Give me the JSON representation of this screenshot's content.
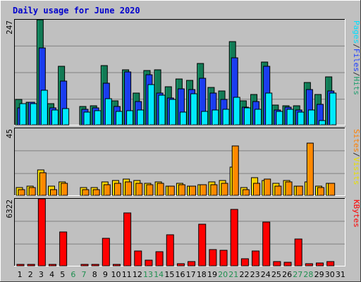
{
  "chart_data": {
    "type": "bar",
    "title": "Daily usage for June 2020",
    "x": [
      "1",
      "2",
      "3",
      "4",
      "5",
      "6",
      "7",
      "8",
      "9",
      "10",
      "11",
      "12",
      "13",
      "14",
      "15",
      "16",
      "17",
      "18",
      "19",
      "20",
      "21",
      "22",
      "23",
      "24",
      "25",
      "26",
      "27",
      "28",
      "29",
      "30",
      "31"
    ],
    "weekend_days": [
      "6",
      "7",
      "13",
      "14",
      "20",
      "21",
      "27",
      "28"
    ],
    "panels": [
      {
        "name": "hits-files-pages",
        "ymax_label": "247",
        "ymax": 247,
        "gridlines": 4,
        "legend": [
          "Pages",
          "/",
          "Files",
          "/",
          "Hits"
        ],
        "legend_colors": [
          "#00e0ff",
          "#333333",
          "#2040ff",
          "#333333",
          "#20a070"
        ],
        "series": [
          {
            "name": "Hits",
            "color": "#127a55",
            "values": [
              60,
              53,
              247,
              50,
              137,
              0,
              43,
              45,
              140,
              57,
              130,
              75,
              127,
              130,
              90,
              108,
              105,
              145,
              88,
              80,
              195,
              56,
              72,
              148,
              46,
              45,
              45,
              100,
              72,
              113,
              0
            ]
          },
          {
            "name": "Files",
            "color": "#1a3cf0",
            "values": [
              40,
              53,
              180,
              40,
              103,
              0,
              36,
              40,
              98,
              43,
              125,
              55,
              118,
              75,
              63,
              85,
              83,
              110,
              75,
              60,
              158,
              42,
              55,
              138,
              35,
              42,
              35,
              83,
              48,
              80,
              0
            ]
          },
          {
            "name": "Pages",
            "color": "#00e8ff",
            "values": [
              50,
              50,
              82,
              35,
              38,
              0,
              30,
              33,
              62,
              32,
              33,
              35,
              95,
              70,
              60,
              30,
              73,
              32,
              35,
              36,
              65,
              40,
              37,
              75,
              32,
              37,
              30,
              35,
              10,
              75,
              0
            ]
          }
        ]
      },
      {
        "name": "visits-sites",
        "ymax_label": "45",
        "ymax": 45,
        "gridlines": 3,
        "legend": [
          "Sites",
          "/",
          "Visits"
        ],
        "legend_colors": [
          "#ff8000",
          "#333333",
          "#e8e000"
        ],
        "series": [
          {
            "name": "Visits",
            "color": "#ffd000",
            "values": [
              5,
              6,
              17,
              6,
              9,
              0,
              5,
              5,
              9,
              10,
              11,
              10,
              8,
              9,
              6,
              8,
              6,
              7,
              9,
              10,
              19,
              5,
              12,
              10,
              8,
              10,
              6,
              9,
              6,
              8,
              0
            ]
          },
          {
            "name": "Sites",
            "color": "#ff8800",
            "values": [
              4,
              5,
              15,
              4,
              8,
              0,
              4,
              4,
              7,
              8,
              9,
              8,
              7,
              8,
              6,
              7,
              6,
              7,
              7,
              8,
              33,
              4,
              8,
              11,
              6,
              9,
              6,
              35,
              5,
              8,
              0
            ]
          }
        ]
      },
      {
        "name": "kbytes",
        "ymax_label": "6322",
        "ymax": 6322,
        "gridlines": 3,
        "legend": [
          "KBytes"
        ],
        "legend_colors": [
          "#ff0000"
        ],
        "series": [
          {
            "name": "KBytes",
            "color": "#ff0000",
            "values": [
              150,
              150,
              6322,
              150,
              3200,
              0,
              120,
              130,
              2600,
              160,
              5000,
              1400,
              550,
              1350,
              2950,
              180,
              380,
              3950,
              1550,
              1450,
              5300,
              650,
              1400,
              4100,
              400,
              300,
              2550,
              220,
              250,
              400,
              0
            ]
          }
        ]
      }
    ]
  }
}
